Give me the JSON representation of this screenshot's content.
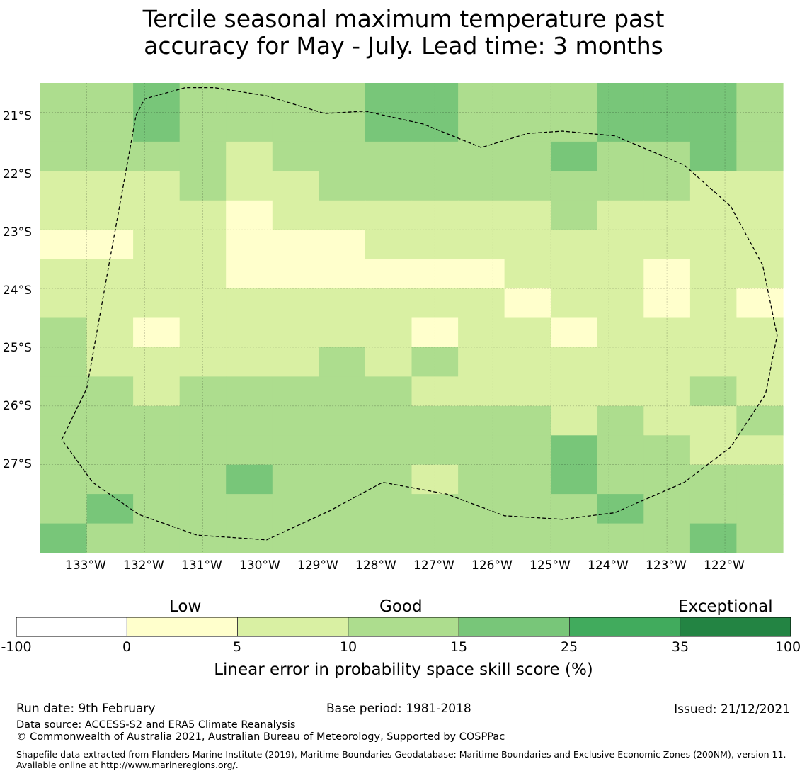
{
  "title": {
    "line1": "Tercile seasonal maximum temperature past",
    "line2": "accuracy for May - July. Lead time: 3 months"
  },
  "map": {
    "lon_range": [
      -133.8,
      -121.0
    ],
    "lat_range": [
      -28.5,
      -20.5
    ],
    "grid_lon_step": 0.8333,
    "grid_lat_step": 0.5556,
    "lon_labels": [
      "133°W",
      "132°W",
      "131°W",
      "130°W",
      "129°W",
      "128°W",
      "127°W",
      "126°W",
      "125°W",
      "124°W",
      "123°W",
      "122°W"
    ],
    "lat_labels": [
      "21°S",
      "22°S",
      "23°S",
      "24°S",
      "25°S",
      "26°S",
      "27°S"
    ],
    "cell_rows": [
      "BBCCBBBCCCCCBBBBBBBBBBBBBBBBCCCCCCCCCCCCCCCCCCCC",
      "BBCCCCCBBBCCCCCCCCCCCCCCCCCCCCCCCCCCCCCCCCCCCCCC",
      "BBCCCCBBBBCCCCCBBBBBBBBBBBBBBBBBBBBBBBBBBBBBBBBC",
      "BBBBBBBBBBBAAAAABBBBBBBBBBBBBBBBBBBBBBBBBBBBBBBB",
      "AAAAAAAAAAAAAAAAAAAAAAAAAAAAAAAAAAAAAAAAAAAAAAAA",
      "AAAAAAAAAAAAAAAAAAAAAAAAAAAAAAAAAAAAAAAAAAAAAAAA",
      "AAAAAAAAAAAAAAAAAAAAAAAAAAAAAAAAAAAAAAAAAAAAAAAA"
    ],
    "cells": [
      [
        3,
        3,
        4,
        3,
        3,
        3,
        3,
        4,
        4,
        3,
        3,
        3,
        4,
        4,
        4,
        3
      ],
      [
        3,
        3,
        4,
        3,
        3,
        3,
        3,
        4,
        4,
        3,
        3,
        3,
        4,
        4,
        4,
        3
      ],
      [
        3,
        3,
        3,
        3,
        2,
        3,
        3,
        3,
        3,
        3,
        3,
        4,
        3,
        3,
        4,
        3
      ],
      [
        2,
        2,
        2,
        3,
        2,
        2,
        3,
        3,
        3,
        3,
        3,
        3,
        3,
        3,
        2,
        2
      ],
      [
        2,
        2,
        2,
        2,
        1,
        2,
        2,
        2,
        2,
        2,
        2,
        3,
        2,
        2,
        2,
        2
      ],
      [
        1,
        1,
        2,
        2,
        1,
        1,
        1,
        2,
        2,
        2,
        2,
        2,
        2,
        2,
        2,
        2
      ],
      [
        2,
        2,
        2,
        2,
        1,
        1,
        1,
        1,
        1,
        1,
        2,
        2,
        2,
        1,
        2,
        2
      ],
      [
        2,
        2,
        2,
        2,
        2,
        2,
        2,
        2,
        2,
        2,
        1,
        2,
        2,
        1,
        2,
        1
      ],
      [
        3,
        2,
        1,
        2,
        2,
        2,
        2,
        2,
        1,
        2,
        2,
        1,
        2,
        2,
        2,
        2
      ],
      [
        3,
        2,
        2,
        2,
        2,
        2,
        3,
        2,
        3,
        2,
        2,
        2,
        2,
        2,
        2,
        2
      ],
      [
        3,
        3,
        2,
        3,
        3,
        3,
        3,
        3,
        2,
        2,
        2,
        2,
        2,
        2,
        3,
        2
      ],
      [
        3,
        3,
        3,
        3,
        3,
        3,
        3,
        3,
        3,
        3,
        3,
        2,
        3,
        2,
        2,
        3
      ],
      [
        3,
        3,
        3,
        3,
        3,
        3,
        3,
        3,
        3,
        3,
        3,
        4,
        3,
        3,
        2,
        2
      ],
      [
        3,
        3,
        3,
        3,
        4,
        3,
        3,
        3,
        2,
        3,
        3,
        4,
        3,
        3,
        3,
        3
      ],
      [
        3,
        4,
        3,
        3,
        3,
        3,
        3,
        3,
        3,
        3,
        3,
        3,
        4,
        3,
        3,
        3
      ],
      [
        4,
        3,
        3,
        3,
        3,
        3,
        3,
        3,
        3,
        3,
        3,
        3,
        3,
        3,
        4,
        3
      ]
    ],
    "boundary_lonlat": [
      [
        -133.43,
        -26.57
      ],
      [
        -133.0,
        -25.7
      ],
      [
        -132.6,
        -23.5
      ],
      [
        -132.15,
        -21.05
      ],
      [
        -132.0,
        -20.77
      ],
      [
        -131.3,
        -20.58
      ],
      [
        -130.8,
        -20.58
      ],
      [
        -129.9,
        -20.72
      ],
      [
        -128.9,
        -21.02
      ],
      [
        -128.2,
        -20.98
      ],
      [
        -127.2,
        -21.2
      ],
      [
        -126.2,
        -21.6
      ],
      [
        -125.4,
        -21.36
      ],
      [
        -124.8,
        -21.32
      ],
      [
        -123.9,
        -21.4
      ],
      [
        -122.7,
        -21.9
      ],
      [
        -121.9,
        -22.6
      ],
      [
        -121.35,
        -23.6
      ],
      [
        -121.1,
        -24.8
      ],
      [
        -121.3,
        -25.8
      ],
      [
        -121.9,
        -26.7
      ],
      [
        -122.7,
        -27.3
      ],
      [
        -123.9,
        -27.82
      ],
      [
        -124.8,
        -27.93
      ],
      [
        -125.8,
        -27.87
      ],
      [
        -126.8,
        -27.5
      ],
      [
        -127.9,
        -27.3
      ],
      [
        -128.8,
        -27.78
      ],
      [
        -129.9,
        -28.28
      ],
      [
        -131.1,
        -28.2
      ],
      [
        -132.1,
        -27.85
      ],
      [
        -132.9,
        -27.3
      ],
      [
        -133.43,
        -26.57
      ]
    ]
  },
  "colorbar": {
    "category_labels": [
      "Low",
      "Good",
      "Exceptional"
    ],
    "ticks": [
      "-100",
      "0",
      "5",
      "10",
      "15",
      "25",
      "35",
      "100"
    ],
    "bins": [
      {
        "from": -100,
        "to": 0,
        "color": "#ffffff"
      },
      {
        "from": 0,
        "to": 5,
        "color": "#ffffcc"
      },
      {
        "from": 5,
        "to": 10,
        "color": "#d9f0a3"
      },
      {
        "from": 10,
        "to": 15,
        "color": "#addd8e"
      },
      {
        "from": 15,
        "to": 25,
        "color": "#78c679"
      },
      {
        "from": 25,
        "to": 35,
        "color": "#41ab5d"
      },
      {
        "from": 35,
        "to": 100,
        "color": "#238443"
      }
    ],
    "title": "Linear error in probability space skill score (%)"
  },
  "footer": {
    "run_date": "Run date: 9th February",
    "base_period": "Base period: 1981-2018",
    "issued": "Issued: 21/12/2021",
    "data_source": "Data source: ACCESS-S2 and ERA5 Climate Reanalysis",
    "copyright": "© Commonwealth of Australia 2021, Australian Bureau of Meteorology, Supported by COSPPac",
    "shapefile": "Shapefile data extracted from Flanders Marine Institute (2019), Maritime Boundaries Geodatabase: Maritime Boundaries and Exclusive Economic Zones (200NM), version 11. Available online at http://www.marineregions.org/."
  }
}
